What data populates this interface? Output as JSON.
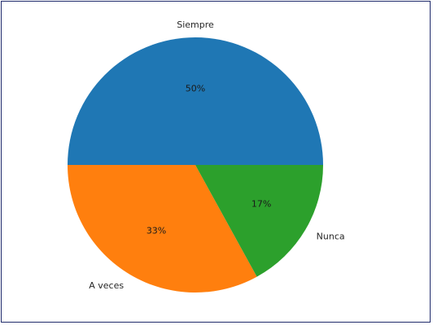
{
  "chart_data": {
    "type": "pie",
    "title": "",
    "slices": [
      {
        "label": "Siempre",
        "value": 50,
        "pct_label": "50%",
        "color": "#1f77b4"
      },
      {
        "label": "A veces",
        "value": 33,
        "pct_label": "33%",
        "color": "#ff7f0e"
      },
      {
        "label": "Nunca",
        "value": 17,
        "pct_label": "17%",
        "color": "#2ca02c"
      }
    ],
    "start_angle_deg": 0,
    "direction": "counterclockwise",
    "legend": "none"
  }
}
